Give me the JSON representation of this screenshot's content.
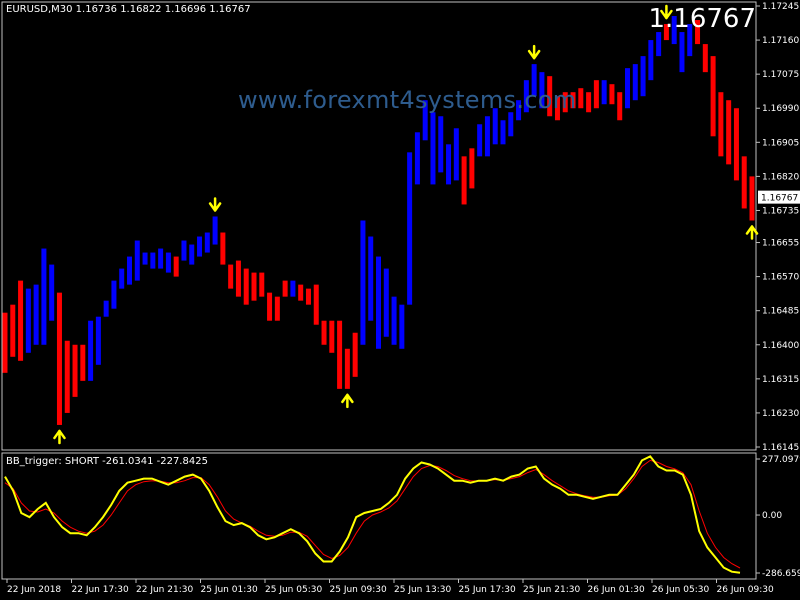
{
  "header": {
    "info": "EURUSD,M30  1.16736 1.16822 1.16696 1.16767"
  },
  "current_price_label": "1.16767",
  "watermark": "www.forexmt4systems.com",
  "indicator": {
    "label": "BB_trigger: SHORT -261.0341 -227.8425"
  },
  "colors": {
    "bull": "#0000ff",
    "bear": "#ff0000",
    "arrow": "#ffff00",
    "main": "#ffff00",
    "signal": "#ff0000",
    "grid": "#c0c0c0"
  },
  "chart_data": [
    {
      "type": "bar",
      "title": "EURUSD,M30",
      "price_axis_labels": [
        "1.17245",
        "1.17160",
        "1.17075",
        "1.16990",
        "1.16905",
        "1.16820",
        "1.16735",
        "1.16655",
        "1.16570",
        "1.16485",
        "1.16400",
        "1.16315",
        "1.16230",
        "1.16145"
      ],
      "ylim": [
        1.16145,
        1.17245
      ],
      "current_price": "1.16767",
      "time_labels": [
        "22 Jun 2018",
        "22 Jun 17:30",
        "22 Jun 21:30",
        "25 Jun 01:30",
        "25 Jun 05:30",
        "25 Jun 09:30",
        "25 Jun 13:30",
        "25 Jun 17:30",
        "25 Jun 21:30",
        "26 Jun 01:30",
        "26 Jun 05:30",
        "26 Jun 09:30"
      ],
      "bars": [
        {
          "from": 1.1633,
          "to": 1.1648,
          "trend": "down"
        },
        {
          "from": 1.1637,
          "to": 1.165,
          "trend": "down"
        },
        {
          "from": 1.1636,
          "to": 1.1656,
          "trend": "down"
        },
        {
          "from": 1.1638,
          "to": 1.1654,
          "trend": "up"
        },
        {
          "from": 1.164,
          "to": 1.1655,
          "trend": "up"
        },
        {
          "from": 1.164,
          "to": 1.1664,
          "trend": "up"
        },
        {
          "from": 1.1646,
          "to": 1.166,
          "trend": "up"
        },
        {
          "from": 1.162,
          "to": 1.1653,
          "trend": "down",
          "arrow": "up"
        },
        {
          "from": 1.1623,
          "to": 1.1641,
          "trend": "down"
        },
        {
          "from": 1.1627,
          "to": 1.164,
          "trend": "down"
        },
        {
          "from": 1.1631,
          "to": 1.164,
          "trend": "down"
        },
        {
          "from": 1.1631,
          "to": 1.1646,
          "trend": "up"
        },
        {
          "from": 1.1635,
          "to": 1.1647,
          "trend": "up"
        },
        {
          "from": 1.1647,
          "to": 1.1651,
          "trend": "up"
        },
        {
          "from": 1.1649,
          "to": 1.1656,
          "trend": "up"
        },
        {
          "from": 1.1654,
          "to": 1.1659,
          "trend": "up"
        },
        {
          "from": 1.1655,
          "to": 1.1662,
          "trend": "up"
        },
        {
          "from": 1.1656,
          "to": 1.1666,
          "trend": "up"
        },
        {
          "from": 1.166,
          "to": 1.1663,
          "trend": "up"
        },
        {
          "from": 1.1659,
          "to": 1.1663,
          "trend": "up"
        },
        {
          "from": 1.1659,
          "to": 1.1664,
          "trend": "up"
        },
        {
          "from": 1.1658,
          "to": 1.1663,
          "trend": "up"
        },
        {
          "from": 1.1657,
          "to": 1.1662,
          "trend": "down"
        },
        {
          "from": 1.1661,
          "to": 1.1666,
          "trend": "up"
        },
        {
          "from": 1.166,
          "to": 1.1665,
          "trend": "up"
        },
        {
          "from": 1.1662,
          "to": 1.1667,
          "trend": "up"
        },
        {
          "from": 1.1663,
          "to": 1.1668,
          "trend": "up"
        },
        {
          "from": 1.1665,
          "to": 1.1672,
          "trend": "up",
          "arrow": "down"
        },
        {
          "from": 1.166,
          "to": 1.1668,
          "trend": "down"
        },
        {
          "from": 1.1654,
          "to": 1.166,
          "trend": "down"
        },
        {
          "from": 1.1652,
          "to": 1.1661,
          "trend": "down"
        },
        {
          "from": 1.165,
          "to": 1.1659,
          "trend": "down"
        },
        {
          "from": 1.1651,
          "to": 1.1658,
          "trend": "down"
        },
        {
          "from": 1.1652,
          "to": 1.1658,
          "trend": "down"
        },
        {
          "from": 1.1646,
          "to": 1.1653,
          "trend": "down"
        },
        {
          "from": 1.1646,
          "to": 1.1652,
          "trend": "down"
        },
        {
          "from": 1.1652,
          "to": 1.1656,
          "trend": "down"
        },
        {
          "from": 1.1652,
          "to": 1.1656,
          "trend": "up"
        },
        {
          "from": 1.1651,
          "to": 1.1655,
          "trend": "down"
        },
        {
          "from": 1.165,
          "to": 1.1654,
          "trend": "down"
        },
        {
          "from": 1.1645,
          "to": 1.1655,
          "trend": "down"
        },
        {
          "from": 1.164,
          "to": 1.1646,
          "trend": "down"
        },
        {
          "from": 1.1638,
          "to": 1.1646,
          "trend": "down"
        },
        {
          "from": 1.1629,
          "to": 1.1646,
          "trend": "down"
        },
        {
          "from": 1.1629,
          "to": 1.1639,
          "trend": "down",
          "arrow": "up"
        },
        {
          "from": 1.1632,
          "to": 1.1643,
          "trend": "down"
        },
        {
          "from": 1.164,
          "to": 1.1671,
          "trend": "up"
        },
        {
          "from": 1.1646,
          "to": 1.1667,
          "trend": "up"
        },
        {
          "from": 1.1639,
          "to": 1.1662,
          "trend": "up"
        },
        {
          "from": 1.1642,
          "to": 1.1659,
          "trend": "up"
        },
        {
          "from": 1.164,
          "to": 1.1652,
          "trend": "up"
        },
        {
          "from": 1.1639,
          "to": 1.165,
          "trend": "up"
        },
        {
          "from": 1.165,
          "to": 1.1688,
          "trend": "up"
        },
        {
          "from": 1.168,
          "to": 1.1693,
          "trend": "up"
        },
        {
          "from": 1.1691,
          "to": 1.1701,
          "trend": "up"
        },
        {
          "from": 1.168,
          "to": 1.1698,
          "trend": "up"
        },
        {
          "from": 1.1683,
          "to": 1.1697,
          "trend": "up"
        },
        {
          "from": 1.168,
          "to": 1.169,
          "trend": "up"
        },
        {
          "from": 1.1681,
          "to": 1.1694,
          "trend": "up"
        },
        {
          "from": 1.1675,
          "to": 1.1687,
          "trend": "down"
        },
        {
          "from": 1.1679,
          "to": 1.1689,
          "trend": "down"
        },
        {
          "from": 1.1687,
          "to": 1.1695,
          "trend": "up"
        },
        {
          "from": 1.1687,
          "to": 1.1697,
          "trend": "up"
        },
        {
          "from": 1.169,
          "to": 1.1699,
          "trend": "up"
        },
        {
          "from": 1.169,
          "to": 1.1696,
          "trend": "up"
        },
        {
          "from": 1.1692,
          "to": 1.1698,
          "trend": "up"
        },
        {
          "from": 1.1696,
          "to": 1.1701,
          "trend": "up"
        },
        {
          "from": 1.1698,
          "to": 1.1706,
          "trend": "up"
        },
        {
          "from": 1.1702,
          "to": 1.171,
          "trend": "up",
          "arrow": "down"
        },
        {
          "from": 1.1699,
          "to": 1.1708,
          "trend": "up"
        },
        {
          "from": 1.1697,
          "to": 1.1707,
          "trend": "down"
        },
        {
          "from": 1.1696,
          "to": 1.1702,
          "trend": "down"
        },
        {
          "from": 1.1698,
          "to": 1.1703,
          "trend": "down"
        },
        {
          "from": 1.1699,
          "to": 1.1703,
          "trend": "down"
        },
        {
          "from": 1.1699,
          "to": 1.1704,
          "trend": "down"
        },
        {
          "from": 1.1698,
          "to": 1.1703,
          "trend": "down"
        },
        {
          "from": 1.1699,
          "to": 1.1706,
          "trend": "down"
        },
        {
          "from": 1.17,
          "to": 1.1706,
          "trend": "up"
        },
        {
          "from": 1.17,
          "to": 1.1705,
          "trend": "down"
        },
        {
          "from": 1.1696,
          "to": 1.1703,
          "trend": "down"
        },
        {
          "from": 1.1699,
          "to": 1.1709,
          "trend": "up"
        },
        {
          "from": 1.1701,
          "to": 1.171,
          "trend": "up"
        },
        {
          "from": 1.1702,
          "to": 1.1712,
          "trend": "up"
        },
        {
          "from": 1.1706,
          "to": 1.1716,
          "trend": "up"
        },
        {
          "from": 1.1712,
          "to": 1.1718,
          "trend": "up"
        },
        {
          "from": 1.1716,
          "to": 1.172,
          "trend": "down",
          "arrow": "down"
        },
        {
          "from": 1.1715,
          "to": 1.1722,
          "trend": "up"
        },
        {
          "from": 1.1708,
          "to": 1.1718,
          "trend": "up"
        },
        {
          "from": 1.1712,
          "to": 1.172,
          "trend": "up"
        },
        {
          "from": 1.1715,
          "to": 1.1721,
          "trend": "down"
        },
        {
          "from": 1.1708,
          "to": 1.1715,
          "trend": "down"
        },
        {
          "from": 1.1692,
          "to": 1.1712,
          "trend": "down"
        },
        {
          "from": 1.1687,
          "to": 1.1703,
          "trend": "down"
        },
        {
          "from": 1.1685,
          "to": 1.1701,
          "trend": "down"
        },
        {
          "from": 1.1681,
          "to": 1.1699,
          "trend": "down"
        },
        {
          "from": 1.1674,
          "to": 1.1687,
          "trend": "down"
        },
        {
          "from": 1.1671,
          "to": 1.1682,
          "trend": "down",
          "arrow": "up"
        }
      ]
    },
    {
      "type": "line",
      "title": "BB_trigger: SHORT -261.0341 -227.8425",
      "axis_labels": [
        "277.0979",
        "0.00",
        "-286.6594"
      ],
      "ylim": [
        -286.6594,
        277.0979
      ],
      "series": [
        {
          "color": "yellow",
          "values": [
            190,
            120,
            10,
            -10,
            30,
            60,
            -10,
            -60,
            -90,
            -90,
            -100,
            -60,
            -10,
            50,
            120,
            160,
            170,
            180,
            180,
            165,
            150,
            170,
            190,
            200,
            180,
            120,
            40,
            -30,
            -50,
            -40,
            -60,
            -100,
            -120,
            -110,
            -90,
            -70,
            -90,
            -130,
            -190,
            -230,
            -230,
            -180,
            -110,
            -10,
            10,
            20,
            30,
            60,
            100,
            180,
            230,
            260,
            250,
            230,
            200,
            170,
            170,
            160,
            170,
            170,
            180,
            170,
            190,
            200,
            230,
            240,
            180,
            150,
            130,
            100,
            100,
            90,
            80,
            90,
            100,
            100,
            150,
            200,
            270,
            290,
            240,
            220,
            220,
            200,
            100,
            -80,
            -160,
            -210,
            -260,
            -280,
            -285
          ]
        },
        {
          "color": "red",
          "values": [
            160,
            130,
            60,
            20,
            15,
            30,
            10,
            -30,
            -60,
            -80,
            -90,
            -80,
            -50,
            0,
            60,
            120,
            150,
            165,
            170,
            168,
            160,
            160,
            170,
            185,
            185,
            150,
            90,
            20,
            -20,
            -40,
            -55,
            -80,
            -100,
            -105,
            -100,
            -85,
            -85,
            -105,
            -150,
            -195,
            -215,
            -200,
            -160,
            -90,
            -30,
            0,
            15,
            35,
            70,
            130,
            190,
            230,
            245,
            240,
            220,
            195,
            180,
            170,
            168,
            170,
            175,
            172,
            180,
            190,
            210,
            225,
            200,
            170,
            145,
            120,
            105,
            95,
            88,
            88,
            95,
            98,
            130,
            180,
            240,
            270,
            260,
            240,
            228,
            210,
            150,
            20,
            -90,
            -160,
            -210,
            -240,
            -262
          ]
        }
      ]
    }
  ]
}
